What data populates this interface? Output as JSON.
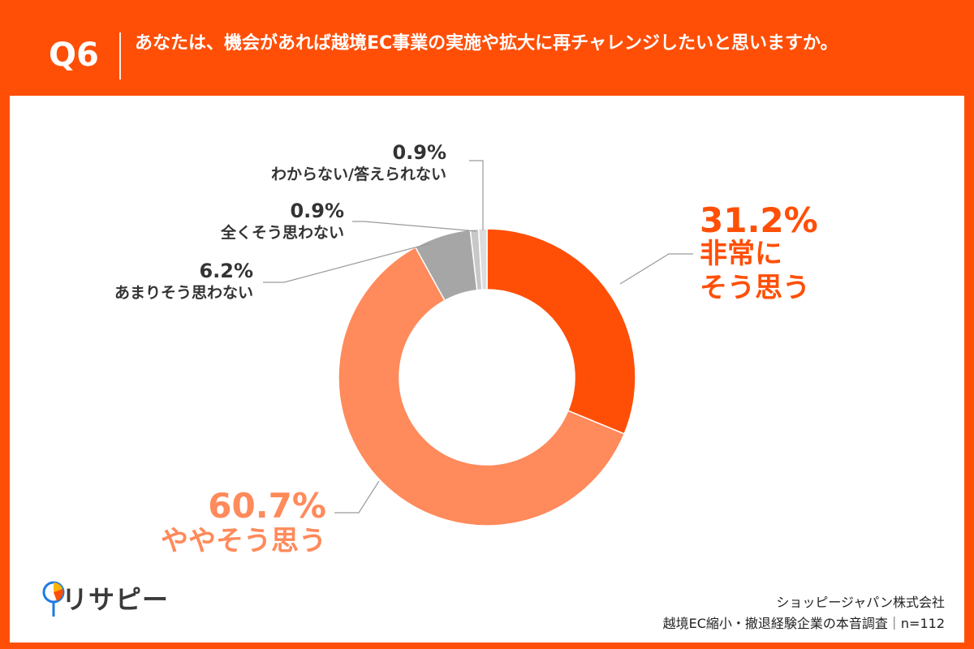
{
  "header": {
    "question_number": "Q6",
    "question_text": "あなたは、機会があれば越境EC事業の実施や拡大に再チャレンジしたいと思いますか。"
  },
  "colors": {
    "background": "#FF4F07",
    "very_much": "#FF4F07",
    "somewhat": "#FF8A5B",
    "not_really": "#A6A6A6",
    "not_at_all": "#C8C8C8",
    "dont_know": "#DCDCDC",
    "label_dark": "#333333",
    "leader_line": "#9a9a9a"
  },
  "chart_data": {
    "type": "pie",
    "donut": true,
    "series": [
      {
        "name": "非常にそう思う",
        "value": 31.2,
        "label_value": "31.2%",
        "label_lines": [
          "非常に",
          "そう思う"
        ],
        "color": "#FF4F07"
      },
      {
        "name": "ややそう思う",
        "value": 60.7,
        "label_value": "60.7%",
        "label_lines": [
          "ややそう思う"
        ],
        "color": "#FF8A5B"
      },
      {
        "name": "あまりそう思わない",
        "value": 6.2,
        "label_value": "6.2%",
        "label_lines": [
          "あまりそう思わない"
        ],
        "color": "#A6A6A6"
      },
      {
        "name": "全くそう思わない",
        "value": 0.9,
        "label_value": "0.9%",
        "label_lines": [
          "全くそう思わない"
        ],
        "color": "#C8C8C8"
      },
      {
        "name": "わからない/答えられない",
        "value": 0.9,
        "label_value": "0.9%",
        "label_lines": [
          "わからない/答えられない"
        ],
        "color": "#DCDCDC"
      }
    ]
  },
  "logo": {
    "text": "リサピー",
    "icon": "lollipop-pie-icon"
  },
  "source": {
    "line1": "ショッピージャパン株式会社",
    "line2": "越境EC縮小・撤退経験企業の本音調査｜n=112"
  }
}
